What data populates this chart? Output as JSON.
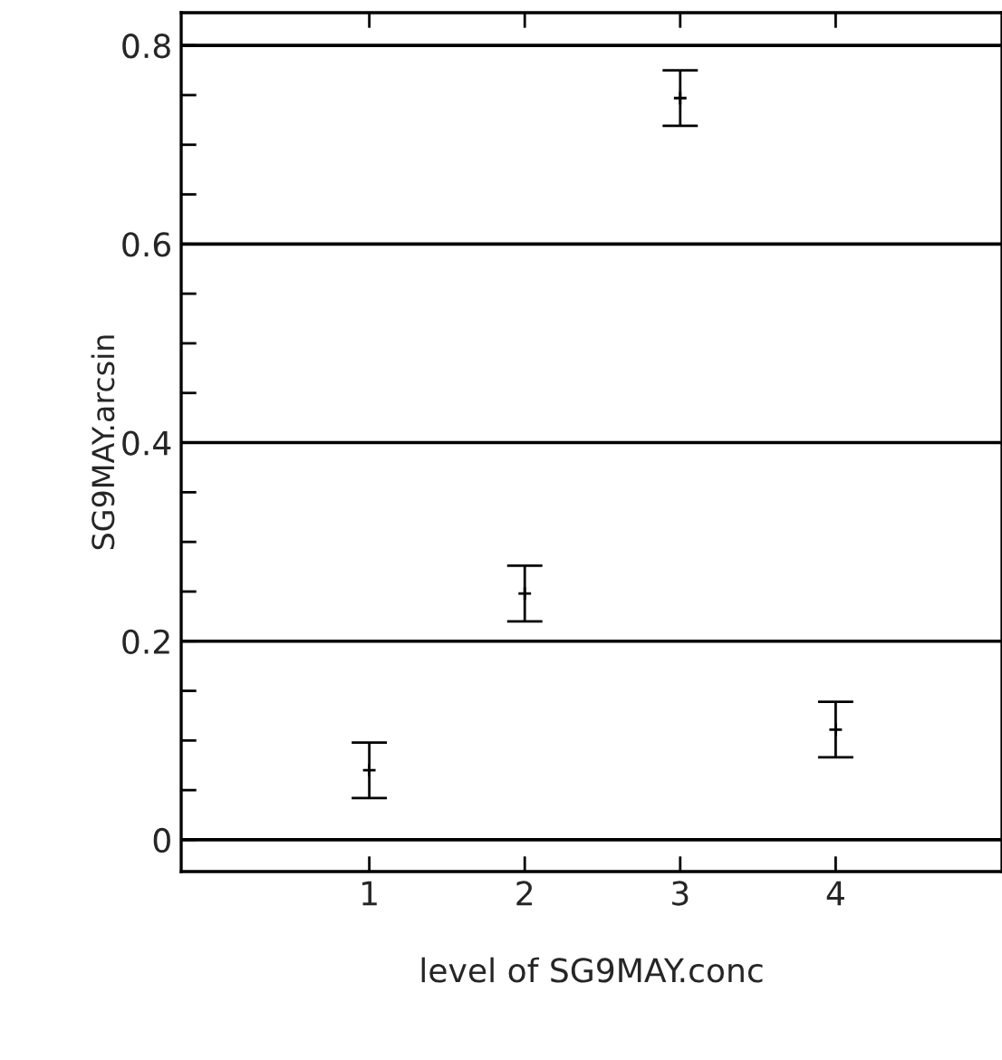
{
  "chart_data": {
    "type": "scatter",
    "xlabel": "level of SG9MAY.conc",
    "ylabel": "SG9MAY.arcsin",
    "x": [
      1,
      2,
      3,
      4
    ],
    "series": [
      {
        "color": "#000000",
        "values": [
          0.07,
          0.248,
          0.747,
          0.111
        ],
        "errors": [
          0.028,
          0.028,
          0.028,
          0.028
        ]
      }
    ],
    "xlim": [
      -0.21,
      5.07
    ],
    "xticks": [
      1,
      2,
      3,
      4
    ],
    "ylim": [
      -0.032,
      0.833
    ],
    "yticks": [
      0,
      {
        "value": 0.05,
        "label": null
      },
      {
        "value": 0.1,
        "label": null
      },
      {
        "value": 0.15,
        "label": null
      },
      0.2,
      {
        "value": 0.25,
        "label": null
      },
      {
        "value": 0.3,
        "label": null
      },
      {
        "value": 0.35,
        "label": null
      },
      0.4,
      {
        "value": 0.45,
        "label": null
      },
      {
        "value": 0.5,
        "label": null
      },
      {
        "value": 0.55,
        "label": null
      },
      0.6,
      {
        "value": 0.65,
        "label": null
      },
      {
        "value": 0.7,
        "label": null
      },
      {
        "value": 0.75,
        "label": null
      },
      0.8
    ],
    "grid": "y",
    "marker": "cross"
  }
}
